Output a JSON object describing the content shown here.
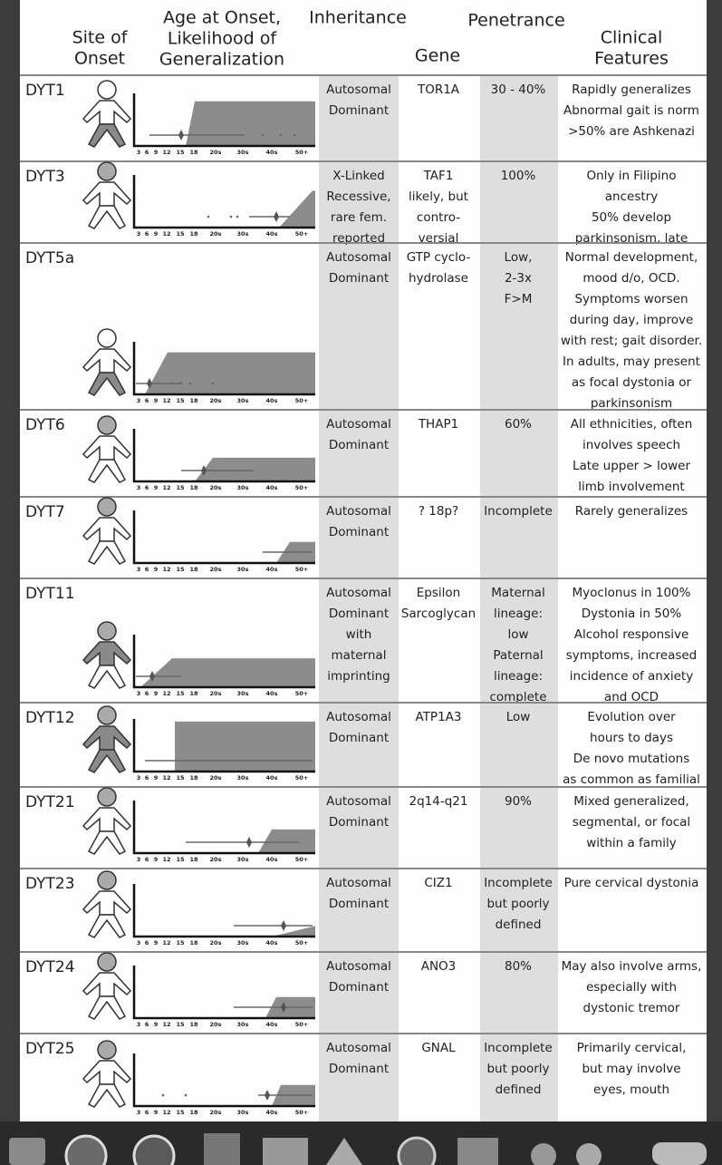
{
  "header": {
    "site_of_onset": [
      "Site of",
      "Onset"
    ],
    "age_at_onset": [
      "Age at Onset,",
      "Likelihood of",
      "Generalization"
    ],
    "inheritance": "Inheritance",
    "gene": "Gene",
    "penetrance": "Penetrance",
    "clinical_features": [
      "Clinical",
      "Features"
    ]
  },
  "age_axis_labels": [
    "3",
    "6",
    "9",
    "12",
    "15",
    "18",
    "20s",
    "30s",
    "40s",
    "50+"
  ],
  "rows": [
    {
      "name": "DYT1",
      "inheritance": [
        "Autosomal",
        "Dominant"
      ],
      "gene": [
        "TOR1A"
      ],
      "penetrance": [
        "30 - 40%"
      ],
      "clinical_features": [
        "Rapidly generalizes",
        "Abnormal gait is norm",
        ">50% are Ashkenazi"
      ]
    },
    {
      "name": "DYT3",
      "inheritance": [
        "X-Linked",
        "Recessive,",
        "rare fem.",
        "reported"
      ],
      "gene": [
        "TAF1",
        "likely, but",
        "contro-",
        "versial"
      ],
      "penetrance": [
        "100%"
      ],
      "clinical_features": [
        "Only in Filipino",
        "ancestry",
        "50% develop",
        "parkinsonism, late"
      ]
    },
    {
      "name": "DYT5a",
      "inheritance": [
        "Autosomal",
        "Dominant"
      ],
      "gene": [
        "GTP cyclo-",
        "hydrolase"
      ],
      "penetrance": [
        "Low,",
        "2-3x",
        "F>M"
      ],
      "clinical_features": [
        "Normal development,",
        "mood d/o, OCD.",
        "Symptoms worsen",
        "during day, improve",
        "with rest; gait disorder.",
        "In adults, may present",
        "as focal dystonia or",
        "parkinsonism"
      ]
    },
    {
      "name": "DYT6",
      "inheritance": [
        "Autosomal",
        "Dominant"
      ],
      "gene": [
        "THAP1"
      ],
      "penetrance": [
        "60%"
      ],
      "clinical_features": [
        "All ethnicities, often",
        "involves speech",
        "Late upper > lower",
        "limb involvement"
      ]
    },
    {
      "name": "DYT7",
      "inheritance": [
        "Autosomal",
        "Dominant"
      ],
      "gene": [
        "? 18p?"
      ],
      "penetrance": [
        "Incomplete"
      ],
      "clinical_features": [
        "Rarely generalizes"
      ]
    },
    {
      "name": "DYT11",
      "inheritance": [
        "Autosomal",
        "Dominant",
        "with",
        "maternal",
        "imprinting"
      ],
      "gene": [
        "Epsilon",
        "Sarcoglycan"
      ],
      "penetrance": [
        "Maternal",
        "lineage:",
        "low",
        "Paternal",
        "lineage:",
        "complete"
      ],
      "clinical_features": [
        "Myoclonus in 100%",
        "Dystonia in 50%",
        "Alcohol responsive",
        "symptoms, increased",
        "incidence of anxiety",
        "and OCD"
      ]
    },
    {
      "name": "DYT12",
      "inheritance": [
        "Autosomal",
        "Dominant"
      ],
      "gene": [
        "ATP1A3"
      ],
      "penetrance": [
        "Low"
      ],
      "clinical_features": [
        "Evolution over",
        "hours to days",
        "De novo mutations",
        "as common as familial"
      ]
    },
    {
      "name": "DYT21",
      "inheritance": [
        "Autosomal",
        "Dominant"
      ],
      "gene": [
        "2q14-q21"
      ],
      "penetrance": [
        "90%"
      ],
      "clinical_features": [
        "Mixed generalized,",
        "segmental, or focal",
        "within a family"
      ]
    },
    {
      "name": "DYT23",
      "inheritance": [
        "Autosomal",
        "Dominant"
      ],
      "gene": [
        "CIZ1"
      ],
      "penetrance": [
        "Incomplete",
        "but poorly",
        "defined"
      ],
      "clinical_features": [
        "Pure cervical dystonia"
      ]
    },
    {
      "name": "DYT24",
      "inheritance": [
        "Autosomal",
        "Dominant"
      ],
      "gene": [
        "ANO3"
      ],
      "penetrance": [
        "80%"
      ],
      "clinical_features": [
        "May also involve arms,",
        "especially with",
        "dystonic tremor"
      ]
    },
    {
      "name": "DYT25",
      "inheritance": [
        "Autosomal",
        "Dominant"
      ],
      "gene": [
        "GNAL"
      ],
      "penetrance": [
        "Incomplete",
        "but poorly",
        "defined"
      ],
      "clinical_features": [
        "Primarily cervical,",
        "but may involve",
        "eyes, mouth"
      ]
    }
  ]
}
